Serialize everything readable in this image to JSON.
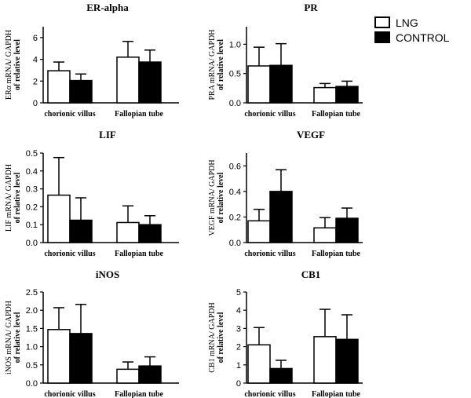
{
  "legend": {
    "items": [
      {
        "label": "LNG",
        "fill": "#ffffff"
      },
      {
        "label": "CONTROL",
        "fill": "#000000"
      }
    ]
  },
  "chart_data": [
    {
      "type": "bar",
      "title": "ER-alpha",
      "ylabel_line1": "ERα mRNA/  GAPDH",
      "ylabel_line2": "of relative  level",
      "categories": [
        "chorionic villus",
        "Fallopian tube"
      ],
      "ylim": [
        0,
        7
      ],
      "yticks": [
        0,
        2,
        4,
        6
      ],
      "yticklabels": [
        "0",
        "2",
        "4",
        "6"
      ],
      "series": [
        {
          "name": "LNG",
          "values": [
            2.95,
            4.2
          ],
          "errors": [
            0.8,
            1.45
          ]
        },
        {
          "name": "CONTROL",
          "values": [
            2.05,
            3.75
          ],
          "errors": [
            0.6,
            1.1
          ]
        }
      ]
    },
    {
      "type": "bar",
      "title": "PR",
      "ylabel_line1": "PRA mRNA/  GAPDH",
      "ylabel_line2": "of relative  level",
      "categories": [
        "chorionic villus",
        "Fallopian tube"
      ],
      "ylim": [
        0,
        1.3
      ],
      "yticks": [
        0,
        0.5,
        1.0
      ],
      "yticklabels": [
        "0.0",
        "0.5",
        "1.0"
      ],
      "series": [
        {
          "name": "LNG",
          "values": [
            0.63,
            0.26
          ],
          "errors": [
            0.32,
            0.07
          ]
        },
        {
          "name": "CONTROL",
          "values": [
            0.64,
            0.28
          ],
          "errors": [
            0.37,
            0.09
          ]
        }
      ]
    },
    {
      "type": "bar",
      "title": "LIF",
      "ylabel_line1": "LIF mRNA/  GAPDH",
      "ylabel_line2": "of relative  level",
      "categories": [
        "chorionic villus",
        "Fallopian tube"
      ],
      "ylim": [
        0,
        0.5
      ],
      "yticks": [
        0,
        0.1,
        0.2,
        0.3,
        0.4,
        0.5
      ],
      "yticklabels": [
        "0.0",
        "0.1",
        "0.2",
        "0.3",
        "0.4",
        "0.5"
      ],
      "series": [
        {
          "name": "LNG",
          "values": [
            0.265,
            0.112
          ],
          "errors": [
            0.21,
            0.093
          ]
        },
        {
          "name": "CONTROL",
          "values": [
            0.125,
            0.1
          ],
          "errors": [
            0.125,
            0.05
          ]
        }
      ]
    },
    {
      "type": "bar",
      "title": "VEGF",
      "ylabel_line1": "VEGF mRNA/  GAPDH",
      "ylabel_line2": "of relative  level",
      "categories": [
        "chorionic villus",
        "Fallopian tube"
      ],
      "ylim": [
        0,
        0.7
      ],
      "yticks": [
        0,
        0.2,
        0.4,
        0.6
      ],
      "yticklabels": [
        "0.0",
        "0.2",
        "0.4",
        "0.6"
      ],
      "series": [
        {
          "name": "LNG",
          "values": [
            0.17,
            0.115
          ],
          "errors": [
            0.09,
            0.08
          ]
        },
        {
          "name": "CONTROL",
          "values": [
            0.4,
            0.19
          ],
          "errors": [
            0.17,
            0.08
          ]
        }
      ]
    },
    {
      "type": "bar",
      "title": "iNOS",
      "ylabel_line1": "iNOS  mRNA/  GAPDH",
      "ylabel_line2": "of relative  level",
      "categories": [
        "chorionic villus",
        "Fallopian tube"
      ],
      "ylim": [
        0,
        2.5
      ],
      "yticks": [
        0,
        0.5,
        1.0,
        1.5,
        2.0,
        2.5
      ],
      "yticklabels": [
        "0.0",
        "0.5",
        "1.0",
        "1.5",
        "2.0",
        "2.5"
      ],
      "series": [
        {
          "name": "LNG",
          "values": [
            1.47,
            0.38
          ],
          "errors": [
            0.6,
            0.2
          ]
        },
        {
          "name": "CONTROL",
          "values": [
            1.36,
            0.47
          ],
          "errors": [
            0.8,
            0.25
          ]
        }
      ]
    },
    {
      "type": "bar",
      "title": "CB1",
      "ylabel_line1": "CB1 mRNA/  GAPDH",
      "ylabel_line2": "of relative  level",
      "categories": [
        "chorionic villus",
        "Fallopian tube"
      ],
      "ylim": [
        0,
        5
      ],
      "yticks": [
        0,
        1,
        2,
        3,
        4,
        5
      ],
      "yticklabels": [
        "0",
        "1",
        "2",
        "3",
        "4",
        "5"
      ],
      "series": [
        {
          "name": "LNG",
          "values": [
            2.1,
            2.55
          ],
          "errors": [
            0.95,
            1.5
          ]
        },
        {
          "name": "CONTROL",
          "values": [
            0.8,
            2.4
          ],
          "errors": [
            0.45,
            1.35
          ]
        }
      ]
    }
  ]
}
